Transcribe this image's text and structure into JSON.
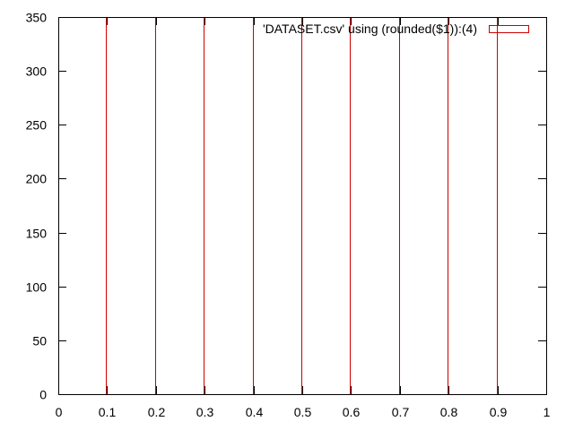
{
  "chart_data": {
    "type": "bar",
    "title": "",
    "xlabel": "",
    "ylabel": "",
    "xlim": [
      0,
      1
    ],
    "ylim": [
      0,
      350
    ],
    "x_ticks": [
      "0",
      "0.1",
      "0.2",
      "0.3",
      "0.4",
      "0.5",
      "0.6",
      "0.7",
      "0.8",
      "0.9",
      "1"
    ],
    "y_ticks": [
      "0",
      "50",
      "100",
      "150",
      "200",
      "250",
      "300",
      "350"
    ],
    "grid": false,
    "legend": {
      "position": "top-right",
      "entries": [
        "'DATASET.csv' using (rounded($1)):(4)"
      ]
    },
    "series": [
      {
        "name": "'DATASET.csv' using (rounded($1)):(4)",
        "color": "#cc0000",
        "x": [
          0.1,
          0.2,
          0.3,
          0.4,
          0.5,
          0.6,
          0.7,
          0.8,
          0.9
        ],
        "y": [
          350,
          350,
          350,
          350,
          350,
          350,
          350,
          350,
          350
        ]
      }
    ]
  }
}
